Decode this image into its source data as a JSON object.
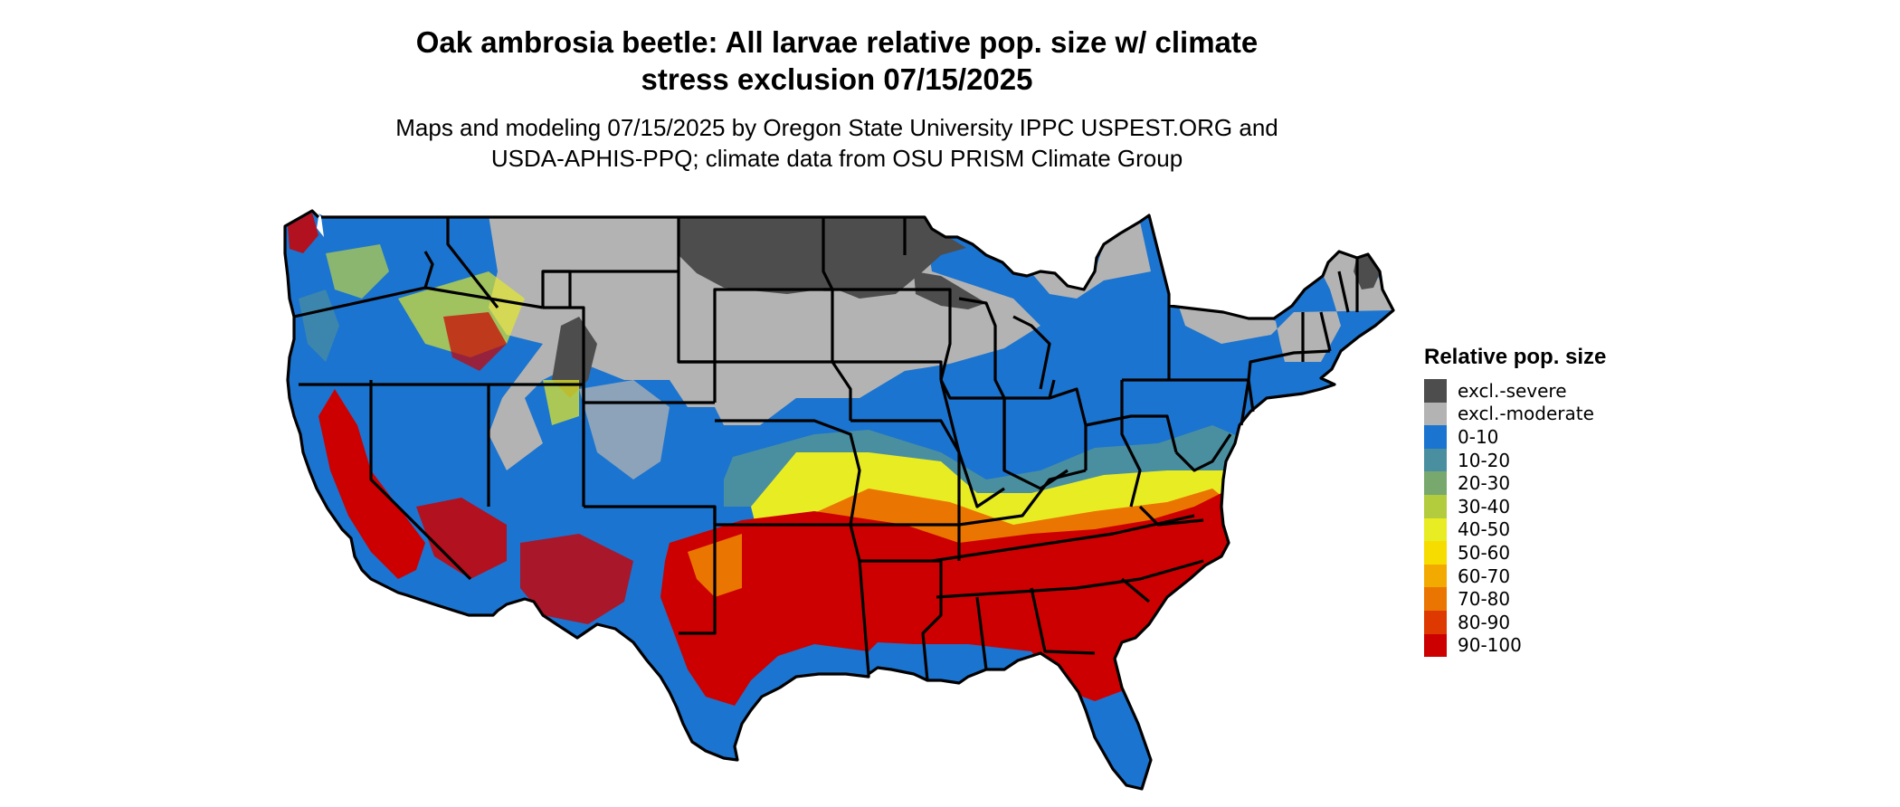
{
  "title_line1": "Oak ambrosia beetle: All larvae relative pop. size w/ climate",
  "title_line2": "stress exclusion 07/15/2025",
  "subtitle_line1": "Maps and modeling 07/15/2025 by Oregon State University IPPC USPEST.ORG and",
  "subtitle_line2": "USDA-APHIS-PPQ; climate data from OSU PRISM Climate Group",
  "legend": {
    "title": "Relative pop. size",
    "items": [
      {
        "label": "excl.-severe",
        "color": "#4d4d4d"
      },
      {
        "label": "excl.-moderate",
        "color": "#b3b3b3"
      },
      {
        "label": "0-10",
        "color": "#1b74cf"
      },
      {
        "label": "10-20",
        "color": "#4a8fa0"
      },
      {
        "label": "20-30",
        "color": "#78a86e"
      },
      {
        "label": "30-40",
        "color": "#b2cc3d"
      },
      {
        "label": "40-50",
        "color": "#e8ec23"
      },
      {
        "label": "50-60",
        "color": "#f7dc00"
      },
      {
        "label": "60-70",
        "color": "#f2aa00"
      },
      {
        "label": "70-80",
        "color": "#ea7500"
      },
      {
        "label": "80-90",
        "color": "#dd3900"
      },
      {
        "label": "90-100",
        "color": "#cc0000"
      }
    ]
  }
}
